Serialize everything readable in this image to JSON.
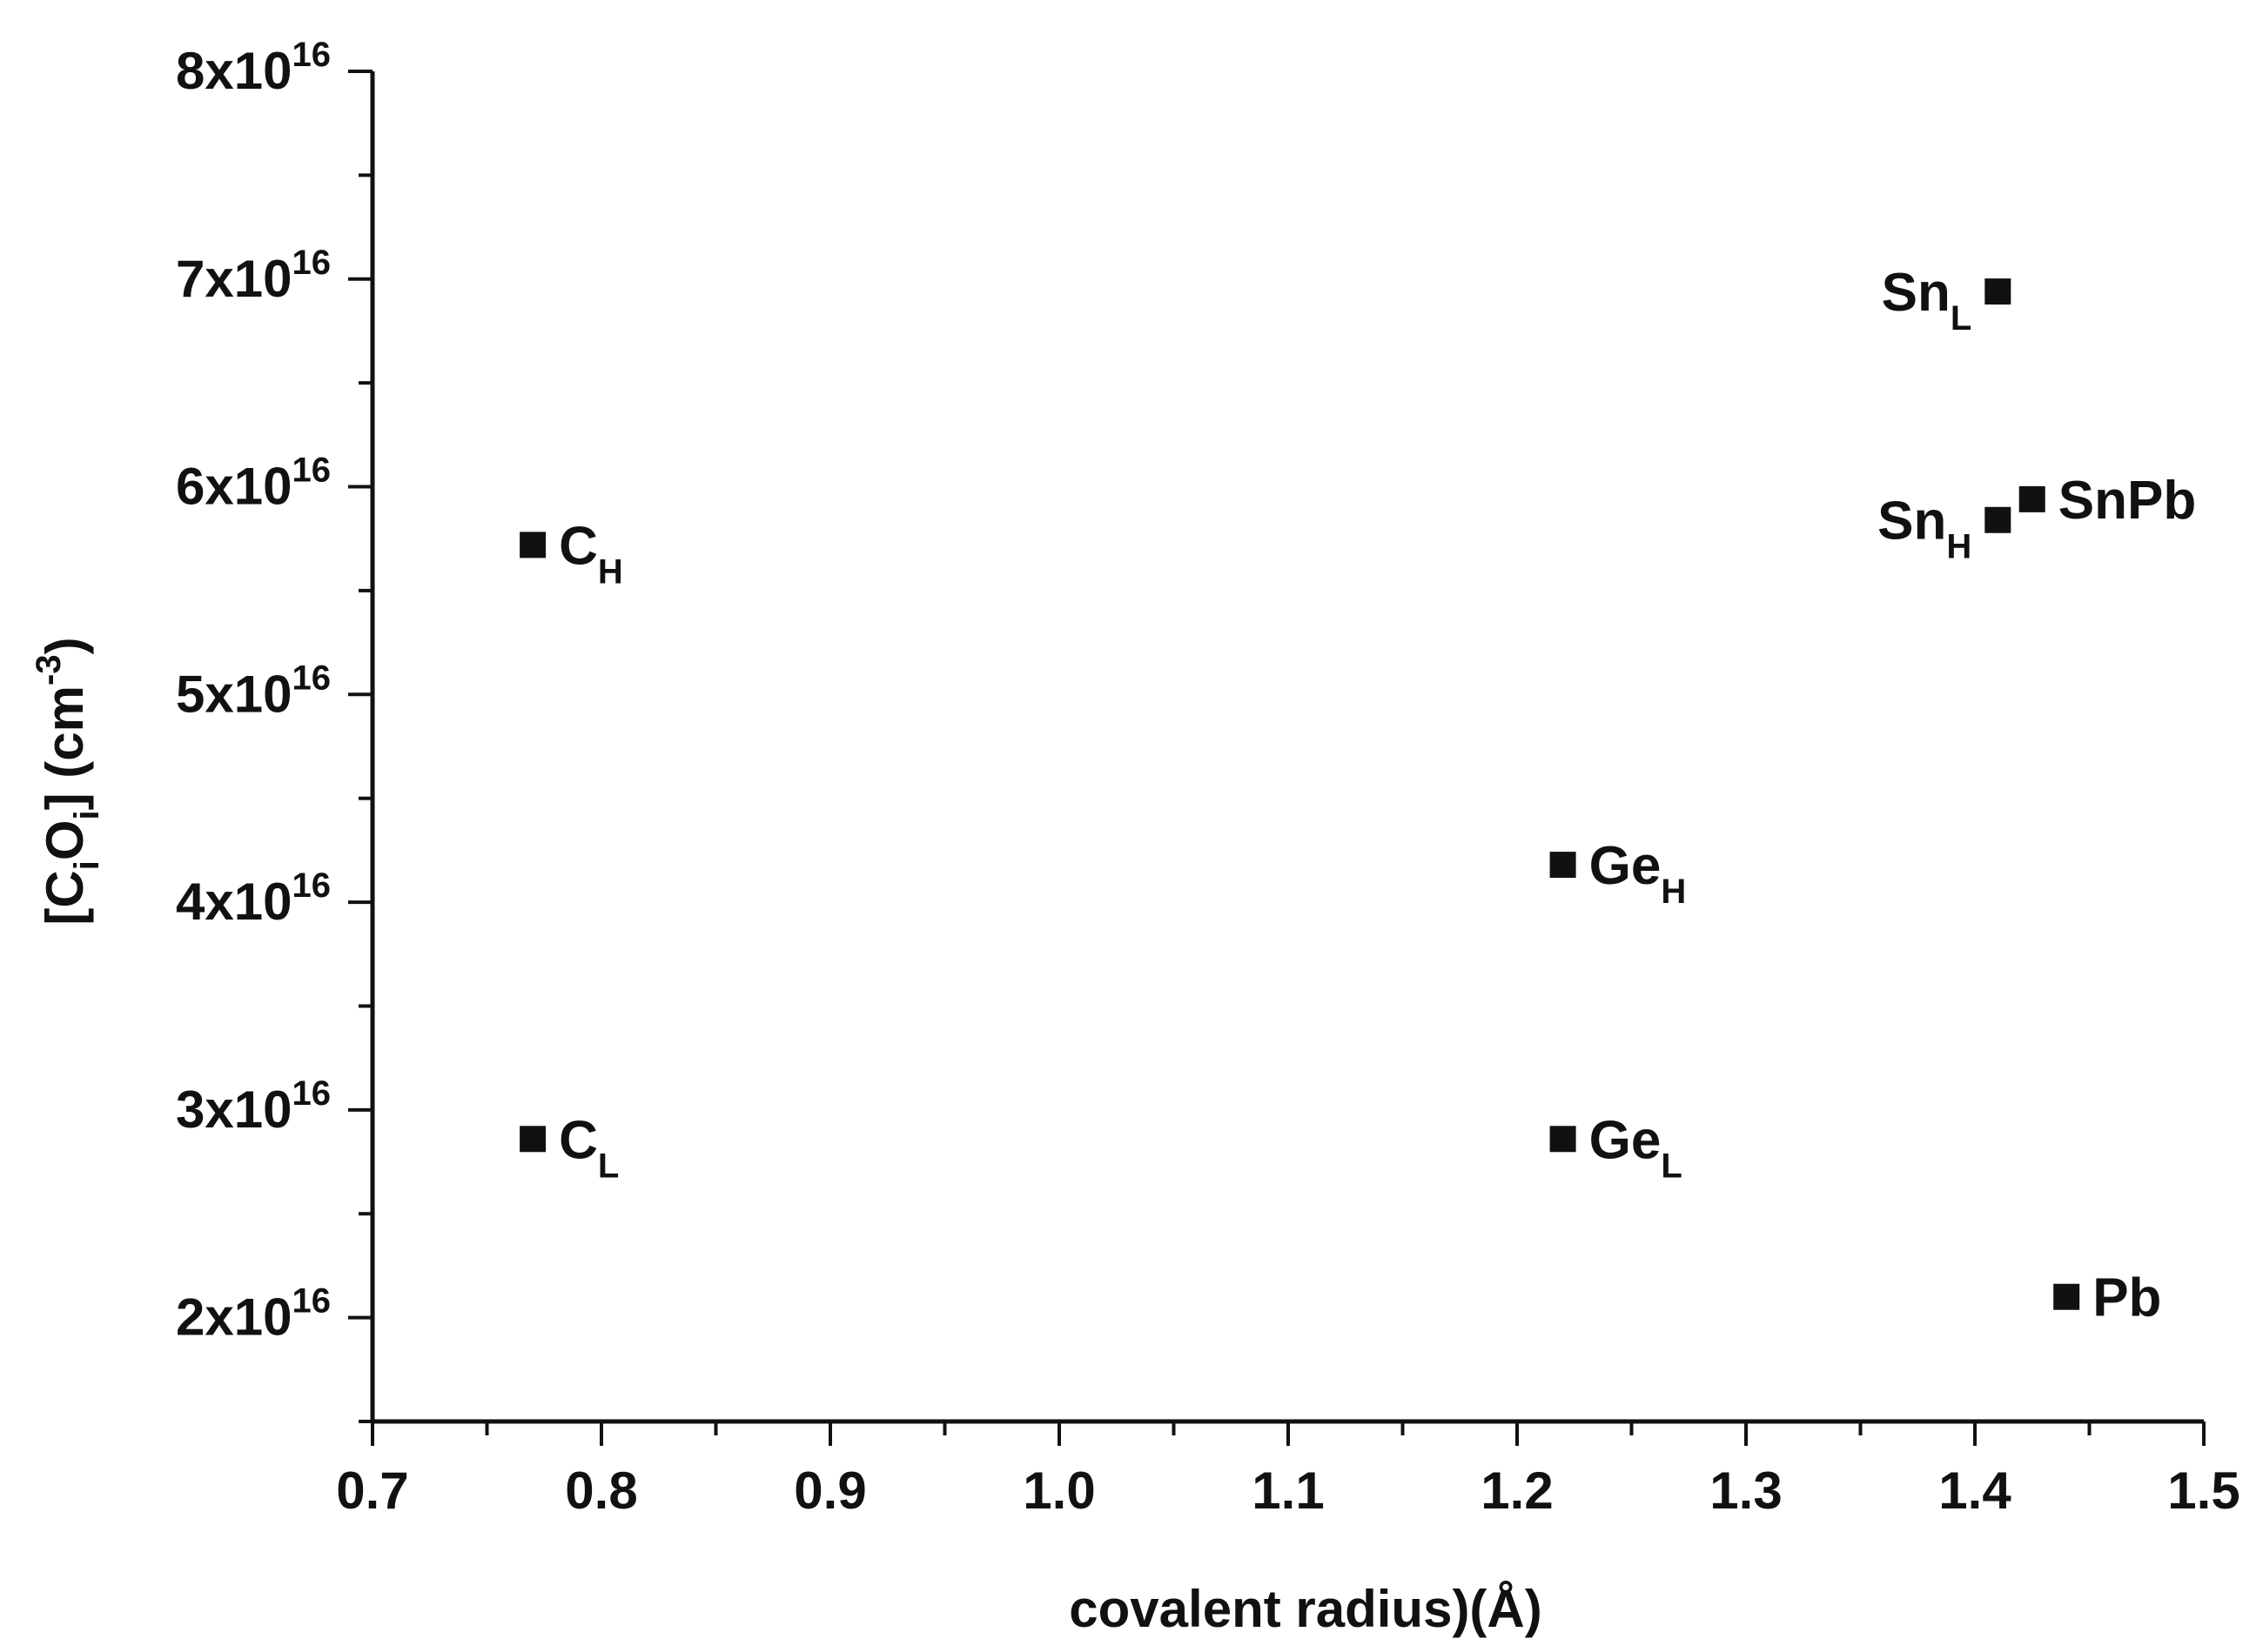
{
  "chart_data": {
    "type": "scatter",
    "xlabel": "covalent radius)(Å)",
    "ylabel": {
      "prefix": "[C",
      "sub1": "i",
      "mid": "O",
      "sub2": "i",
      "suffix": "] (cm",
      "sup": "-3",
      "close": ")"
    },
    "xlim": [
      0.7,
      1.5
    ],
    "ylim": [
      15000000000000000,
      80000000000000000
    ],
    "x_ticks": [
      {
        "value": 0.7,
        "label": "0.7"
      },
      {
        "value": 0.8,
        "label": "0.8"
      },
      {
        "value": 0.9,
        "label": "0.9"
      },
      {
        "value": 1.0,
        "label": "1.0"
      },
      {
        "value": 1.1,
        "label": "1.1"
      },
      {
        "value": 1.2,
        "label": "1.2"
      },
      {
        "value": 1.3,
        "label": "1.3"
      },
      {
        "value": 1.4,
        "label": "1.4"
      },
      {
        "value": 1.5,
        "label": "1.5"
      }
    ],
    "y_ticks": [
      {
        "value": 20000000000000000,
        "mantissa": "2x10",
        "exp": "16"
      },
      {
        "value": 30000000000000000,
        "mantissa": "3x10",
        "exp": "16"
      },
      {
        "value": 40000000000000000,
        "mantissa": "4x10",
        "exp": "16"
      },
      {
        "value": 50000000000000000,
        "mantissa": "5x10",
        "exp": "16"
      },
      {
        "value": 60000000000000000,
        "mantissa": "6x10",
        "exp": "16"
      },
      {
        "value": 70000000000000000,
        "mantissa": "7x10",
        "exp": "16"
      },
      {
        "value": 80000000000000000,
        "mantissa": "8x10",
        "exp": "16"
      }
    ],
    "marker": "square",
    "marker_color": "#111111",
    "points": [
      {
        "x": 0.77,
        "y": 57200000000000000,
        "label": "C",
        "sub": "H",
        "side": "right"
      },
      {
        "x": 0.77,
        "y": 28600000000000000,
        "label": "C",
        "sub": "L",
        "side": "right"
      },
      {
        "x": 1.22,
        "y": 41800000000000000,
        "label": "Ge",
        "sub": "H",
        "side": "right"
      },
      {
        "x": 1.22,
        "y": 28600000000000000,
        "label": "Ge",
        "sub": "L",
        "side": "right"
      },
      {
        "x": 1.41,
        "y": 69400000000000000,
        "label": "Sn",
        "sub": "L",
        "side": "left"
      },
      {
        "x": 1.41,
        "y": 58400000000000000,
        "label": "Sn",
        "sub": "H",
        "side": "left"
      },
      {
        "x": 1.425,
        "y": 59400000000000000,
        "label": "SnPb",
        "sub": "",
        "side": "right"
      },
      {
        "x": 1.44,
        "y": 21000000000000000,
        "label": "Pb",
        "sub": "",
        "side": "right"
      }
    ]
  }
}
